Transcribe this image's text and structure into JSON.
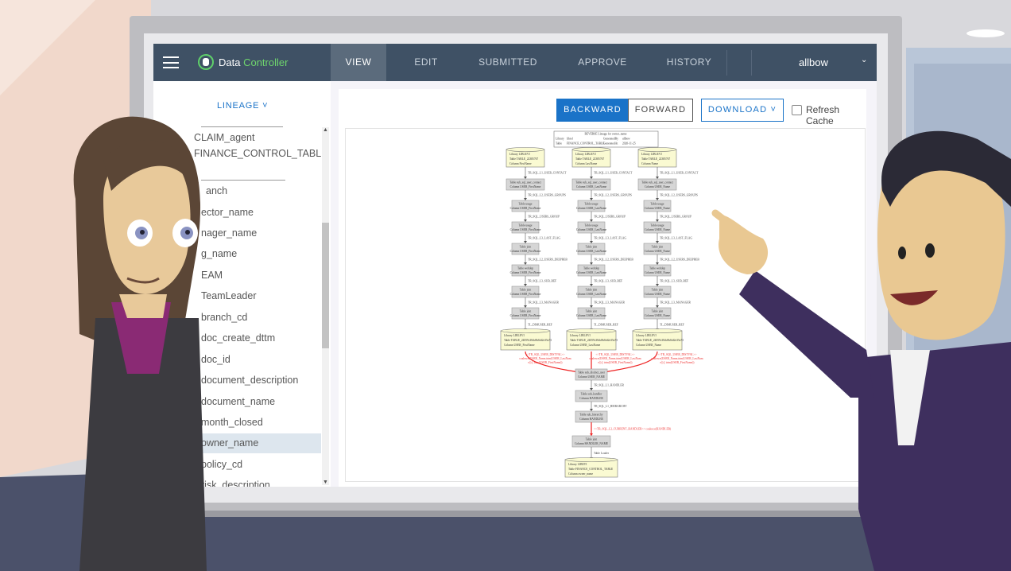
{
  "header": {
    "brand_part1": "Data ",
    "brand_part2": "Controller",
    "tabs": [
      {
        "label": "VIEW",
        "active": true
      },
      {
        "label": "EDIT"
      },
      {
        "label": "SUBMITTED"
      },
      {
        "label": "APPROVE"
      },
      {
        "label": "HISTORY"
      }
    ],
    "user": "allbow",
    "user_chevron": "⌄",
    "colors": {
      "bar": "#3f5165",
      "brand_accent": "#6fd66d"
    }
  },
  "sidebar": {
    "lineage_label": "LINEAGE ˅",
    "items": [
      {
        "label": "CLAIM_agent"
      },
      {
        "label": "FINANCE_CONTROL_TABLE"
      },
      {
        "label": "anch"
      },
      {
        "label": "ector_name"
      },
      {
        "label": "nager_name"
      },
      {
        "label": "g_name"
      },
      {
        "label": "EAM"
      },
      {
        "label": "TeamLeader"
      },
      {
        "label": "branch_cd"
      },
      {
        "label": "doc_create_dttm"
      },
      {
        "label": "doc_id"
      },
      {
        "label": "document_description"
      },
      {
        "label": "document_name"
      },
      {
        "label": "month_closed"
      },
      {
        "label": "owner_name",
        "selected": true
      },
      {
        "label": "policy_cd"
      },
      {
        "label": "risk_description"
      }
    ]
  },
  "toolbar": {
    "backward": "BACKWARD",
    "forward": "FORWARD",
    "download": "DOWNLOAD ˅",
    "refresh_cache": "Refresh Cache",
    "refresh_checked": false,
    "accent": "#1a73c8"
  },
  "diagram": {
    "title": "REVERSE Lineage for owner_name",
    "meta": [
      [
        "Library",
        "libref",
        "GeneratedBy",
        "allbow"
      ],
      [
        "Table",
        "FINANCE_CONTROL_TABLE",
        "GeneratedAt",
        "2020-11-25"
      ]
    ],
    "sources": [
      {
        "lib": "LIBLEVI",
        "table": "TABLE_22385767",
        "column": "FirstName"
      },
      {
        "lib": "LIBLEVI",
        "table": "TABLE_22385767",
        "column": "LastName"
      },
      {
        "lib": "LIBLEVI",
        "table": "TABLE_22385767",
        "column": "Name"
      }
    ],
    "steps": [
      {
        "edge": "TR_SQL_L1_USER_CONTACT",
        "table": "sub_sql_user_contact",
        "column_prefix": "USER_"
      },
      {
        "edge": "TR_SQL_L2_USERS_GROUPS",
        "table": "usage",
        "column_prefix": "USER_"
      },
      {
        "edge": "TR_SQL_USERS_GROUP",
        "table": "usage",
        "column_prefix": "USER_"
      },
      {
        "edge": "TR_SQL_L3_LAST_FLAG",
        "table": "join",
        "column_prefix": "USER_"
      },
      {
        "edge": "TR_SQL_L2_USERS_DEEPREB",
        "table": "webdep",
        "column_prefix": "USER_"
      },
      {
        "edge": "TR_SQL_L3_SUB_REF",
        "table": "join",
        "column_prefix": "USER_"
      },
      {
        "edge": "TR_SQL_L3_MANAGER",
        "table": "join",
        "column_prefix": "USER_"
      }
    ],
    "mid_edge": "TL_DIMUSER_REF",
    "mid_sources": [
      {
        "lib": "LIBLEVI",
        "table": "TABLE_24059c38dc8b6fd2e35a73",
        "column": "USER_FirstName"
      },
      {
        "lib": "LIBLEVI",
        "table": "TABLE_24059c38dc8b6fd2e35a73",
        "column": "USER_LastName"
      },
      {
        "lib": "LIBLEVI",
        "table": "TABLE_24059c38dc8b6fd2e35a73",
        "column": "USER_Name"
      }
    ],
    "red_edges": [
      "<<TR_SQL_USER_DISTVAL>> coalesce(USER_Name,trim(USER_LastName)) || trim(USER_FirstName))",
      "<<TR_SQL_USER_DISTVAL>> coalesce(USER_Name,trim(USER_LastName)) || trim(USER_FirstName))",
      "<<TR_SQL_USER_DISTVAL>> coalesce(USER_Name,trim(USER_LastName)) || trim(USER_FirstName))"
    ],
    "tail": [
      {
        "table": "sub_distinct_user",
        "column": "USER_NAME",
        "edge": "TR_SQL_L1_HANDLER",
        "red": false
      },
      {
        "table": "sub_handler",
        "column": "HANDLER",
        "edge": "TR_SQL_L1_HIERARCHY",
        "red": false
      },
      {
        "table": "sub_hierarchy",
        "column": "HANDLER",
        "edge": "<<TR_SQL_L2_CURRENT_HANDLER>> coalesce(HANDLER)",
        "red": true
      },
      {
        "table": "join",
        "column": "HANDLER_NAME",
        "edge": "Table Loader",
        "red": false
      }
    ],
    "target": {
      "lib": "LIBEVI",
      "table": "FINANCE_CONTROL_TABLE",
      "column": "owner_name"
    }
  }
}
